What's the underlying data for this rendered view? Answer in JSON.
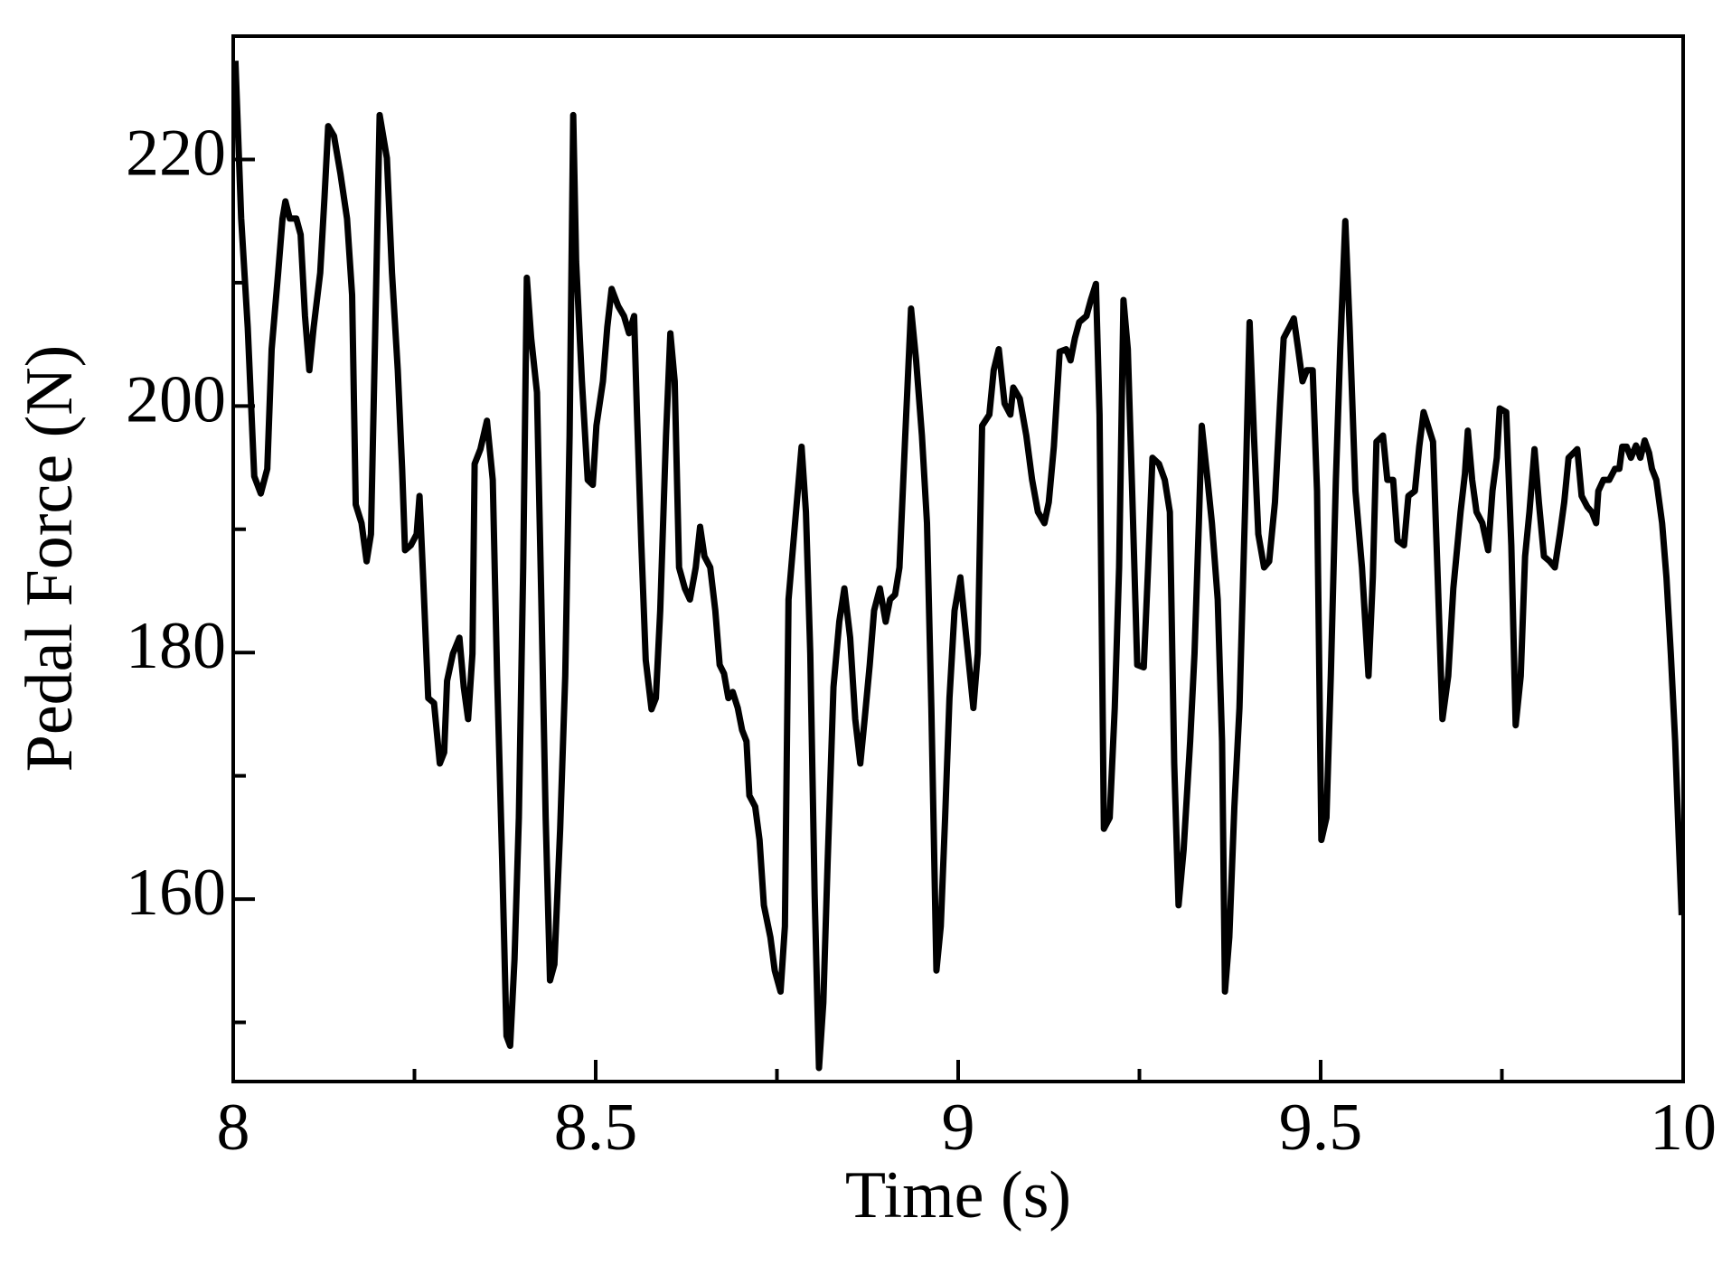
{
  "chart_data": {
    "type": "line",
    "xlabel": "Time (s)",
    "ylabel": "Pedal Force (N)",
    "color": "#000000",
    "xlim": [
      8,
      10
    ],
    "xticks": [
      8,
      8.5,
      9,
      9.5,
      10
    ],
    "xminorticks": [
      8.25,
      8.75,
      9.25,
      9.75
    ],
    "ylim": [
      145.2,
      230
    ],
    "yticks": [
      160,
      180,
      200,
      220
    ],
    "yminorticks": [
      150,
      170,
      190,
      210
    ],
    "x": [
      8.003,
      8.011,
      8.02,
      8.029,
      8.038,
      8.047,
      8.053,
      8.062,
      8.068,
      8.072,
      8.078,
      8.087,
      8.093,
      8.099,
      8.105,
      8.111,
      8.12,
      8.126,
      8.131,
      8.139,
      8.148,
      8.157,
      8.164,
      8.169,
      8.177,
      8.184,
      8.19,
      8.196,
      8.202,
      8.212,
      8.219,
      8.227,
      8.233,
      8.237,
      8.245,
      8.253,
      8.257,
      8.262,
      8.269,
      8.277,
      8.285,
      8.291,
      8.295,
      8.303,
      8.312,
      8.318,
      8.324,
      8.33,
      8.333,
      8.341,
      8.35,
      8.358,
      8.364,
      8.371,
      8.377,
      8.382,
      8.388,
      8.394,
      8.4,
      8.405,
      8.411,
      8.419,
      8.425,
      8.431,
      8.437,
      8.443,
      8.451,
      8.458,
      8.464,
      8.469,
      8.473,
      8.481,
      8.489,
      8.496,
      8.501,
      8.51,
      8.516,
      8.522,
      8.531,
      8.539,
      8.546,
      8.553,
      8.557,
      8.563,
      8.569,
      8.577,
      8.583,
      8.589,
      8.597,
      8.603,
      8.609,
      8.615,
      8.623,
      8.63,
      8.638,
      8.644,
      8.65,
      8.658,
      8.665,
      8.671,
      8.677,
      8.683,
      8.689,
      8.696,
      8.702,
      8.708,
      8.712,
      8.72,
      8.726,
      8.732,
      8.741,
      8.747,
      8.755,
      8.761,
      8.766,
      8.775,
      8.784,
      8.79,
      8.796,
      8.802,
      8.808,
      8.814,
      8.82,
      8.828,
      8.836,
      8.843,
      8.851,
      8.858,
      8.865,
      8.871,
      8.878,
      8.884,
      8.892,
      8.9,
      8.906,
      8.913,
      8.919,
      8.927,
      8.935,
      8.942,
      8.95,
      8.957,
      8.963,
      8.97,
      8.976,
      8.982,
      8.988,
      8.995,
      9.003,
      9.009,
      9.015,
      9.021,
      9.027,
      9.033,
      9.043,
      9.049,
      9.056,
      9.064,
      9.072,
      9.076,
      9.085,
      9.094,
      9.102,
      9.11,
      9.119,
      9.125,
      9.132,
      9.14,
      9.149,
      9.155,
      9.161,
      9.167,
      9.177,
      9.183,
      9.19,
      9.195,
      9.201,
      9.209,
      9.216,
      9.222,
      9.228,
      9.234,
      9.24,
      9.247,
      9.256,
      9.262,
      9.268,
      9.277,
      9.285,
      9.292,
      9.298,
      9.304,
      9.311,
      9.32,
      9.326,
      9.332,
      9.336,
      9.344,
      9.35,
      9.358,
      9.364,
      9.368,
      9.374,
      9.381,
      9.388,
      9.396,
      9.402,
      9.408,
      9.414,
      9.422,
      9.429,
      9.437,
      9.444,
      9.449,
      9.457,
      9.463,
      9.469,
      9.475,
      9.481,
      9.489,
      9.495,
      9.501,
      9.508,
      9.514,
      9.521,
      9.527,
      9.534,
      9.54,
      9.548,
      9.557,
      9.566,
      9.572,
      9.577,
      9.586,
      9.592,
      9.6,
      9.606,
      9.615,
      9.621,
      9.63,
      9.636,
      9.642,
      9.648,
      9.655,
      9.661,
      9.668,
      9.676,
      9.683,
      9.693,
      9.699,
      9.703,
      9.709,
      9.715,
      9.723,
      9.731,
      9.737,
      9.743,
      9.747,
      9.756,
      9.763,
      9.769,
      9.776,
      9.782,
      9.788,
      9.795,
      9.801,
      9.808,
      9.816,
      9.823,
      9.83,
      9.836,
      9.842,
      9.849,
      9.854,
      9.86,
      9.868,
      9.874,
      9.88,
      9.883,
      9.89,
      9.898,
      9.906,
      9.912,
      9.916,
      9.922,
      9.928,
      9.935,
      9.941,
      9.947,
      9.953,
      9.957,
      9.963,
      9.971,
      9.977,
      9.983,
      9.989,
      9.994,
      9.998
    ],
    "values": [
      228.0,
      215.2,
      206.4,
      194.3,
      192.9,
      194.9,
      204.6,
      210.8,
      215.2,
      216.6,
      215.2,
      215.2,
      213.9,
      207.3,
      202.9,
      206.4,
      210.8,
      217.0,
      222.7,
      221.9,
      218.8,
      215.2,
      209.0,
      192.0,
      190.5,
      187.4,
      189.6,
      206.4,
      223.6,
      220.1,
      210.8,
      202.9,
      194.9,
      188.3,
      188.7,
      189.6,
      192.7,
      186.1,
      176.3,
      175.9,
      171.0,
      171.9,
      177.7,
      179.9,
      181.2,
      177.2,
      174.6,
      179.9,
      195.3,
      196.5,
      198.8,
      194.0,
      178.1,
      163.1,
      148.9,
      148.1,
      155.1,
      166.6,
      186.9,
      210.4,
      205.5,
      201.1,
      184.3,
      166.6,
      153.4,
      154.7,
      165.7,
      178.1,
      197.6,
      223.6,
      211.7,
      202.0,
      194.0,
      193.6,
      198.4,
      202.0,
      206.4,
      209.5,
      208.1,
      207.3,
      205.9,
      207.3,
      199.3,
      188.7,
      179.4,
      175.4,
      176.3,
      183.4,
      197.6,
      205.9,
      202.0,
      186.9,
      185.2,
      184.3,
      186.9,
      190.2,
      187.8,
      186.9,
      183.4,
      179.0,
      178.3,
      176.3,
      176.8,
      175.5,
      173.7,
      172.8,
      168.4,
      167.5,
      164.8,
      159.5,
      156.9,
      154.2,
      152.5,
      157.8,
      184.3,
      190.5,
      196.7,
      191.4,
      179.9,
      160.4,
      146.3,
      151.6,
      163.1,
      177.2,
      182.5,
      185.2,
      181.2,
      174.6,
      171.0,
      174.6,
      179.0,
      183.4,
      185.2,
      182.5,
      184.3,
      184.7,
      186.9,
      197.6,
      207.9,
      203.7,
      197.6,
      190.5,
      175.5,
      154.2,
      157.8,
      166.6,
      176.3,
      183.4,
      186.1,
      182.5,
      179.0,
      175.5,
      179.9,
      198.4,
      199.3,
      202.9,
      204.6,
      200.2,
      199.3,
      201.5,
      200.6,
      197.6,
      194.0,
      191.4,
      190.5,
      192.2,
      196.7,
      204.4,
      204.6,
      203.7,
      205.5,
      206.8,
      207.3,
      208.6,
      209.9,
      199.3,
      165.7,
      166.6,
      175.5,
      186.9,
      208.6,
      204.6,
      193.1,
      179.0,
      178.8,
      186.9,
      195.8,
      195.3,
      194.0,
      191.4,
      171.0,
      159.5,
      164.0,
      172.8,
      179.9,
      190.5,
      198.4,
      194.0,
      190.5,
      184.3,
      172.8,
      152.5,
      156.9,
      167.5,
      175.5,
      192.2,
      206.8,
      197.6,
      189.6,
      186.9,
      187.4,
      192.2,
      200.2,
      205.5,
      206.4,
      207.1,
      204.6,
      202.0,
      202.9,
      202.9,
      193.1,
      164.8,
      166.6,
      178.1,
      194.0,
      204.6,
      215.0,
      206.4,
      193.1,
      186.9,
      178.1,
      186.1,
      197.1,
      197.6,
      194.0,
      194.0,
      189.1,
      188.7,
      192.7,
      193.1,
      196.7,
      199.5,
      198.4,
      197.1,
      186.9,
      174.6,
      178.1,
      185.2,
      191.4,
      194.5,
      198.0,
      194.0,
      191.4,
      190.5,
      188.3,
      193.1,
      195.8,
      199.8,
      199.5,
      188.7,
      174.1,
      178.1,
      187.8,
      191.4,
      196.5,
      192.2,
      187.8,
      187.4,
      186.9,
      189.6,
      192.2,
      195.8,
      196.2,
      196.5,
      192.7,
      191.8,
      191.4,
      190.5,
      193.1,
      194.0,
      194.0,
      194.9,
      194.9,
      196.7,
      196.7,
      195.8,
      196.8,
      195.8,
      197.2,
      196.2,
      194.9,
      194.0,
      190.5,
      186.1,
      179.9,
      172.8,
      164.8,
      158.7
    ]
  }
}
